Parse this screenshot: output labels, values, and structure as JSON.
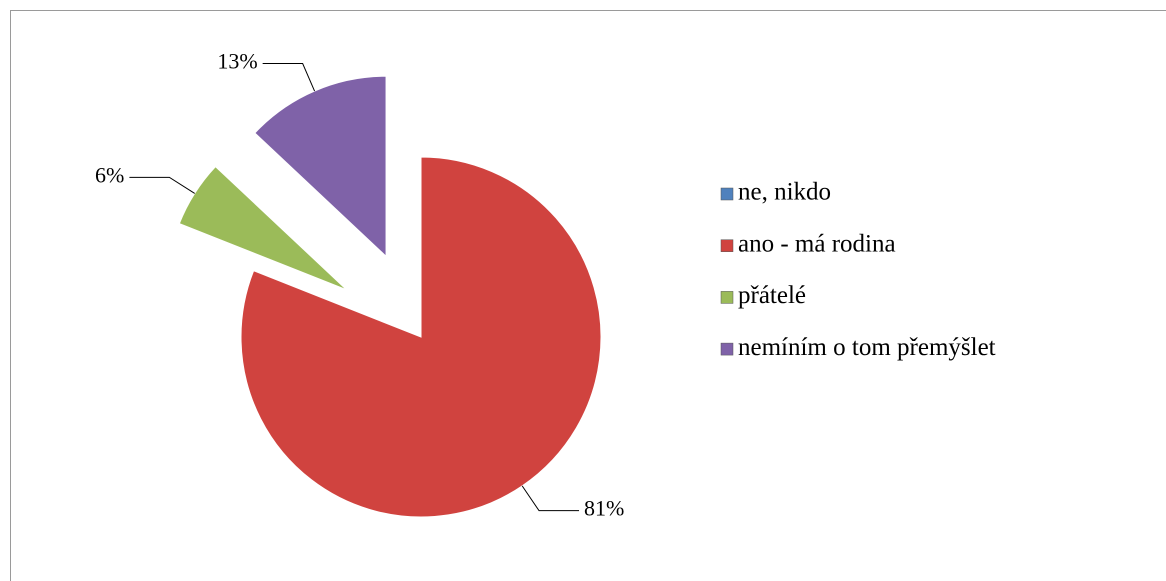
{
  "chart_data": {
    "type": "pie",
    "categories": [
      "ne, nikdo",
      "ano - má rodina",
      "přátelé",
      "nemíním o tom přemýšlet"
    ],
    "values": [
      0,
      81,
      6,
      13
    ],
    "value_labels": [
      null,
      "81%",
      "6%",
      "13%"
    ],
    "colors": [
      "#4f81bd",
      "#d0433f",
      "#9bbb59",
      "#7f62a8"
    ],
    "legend": "right"
  }
}
